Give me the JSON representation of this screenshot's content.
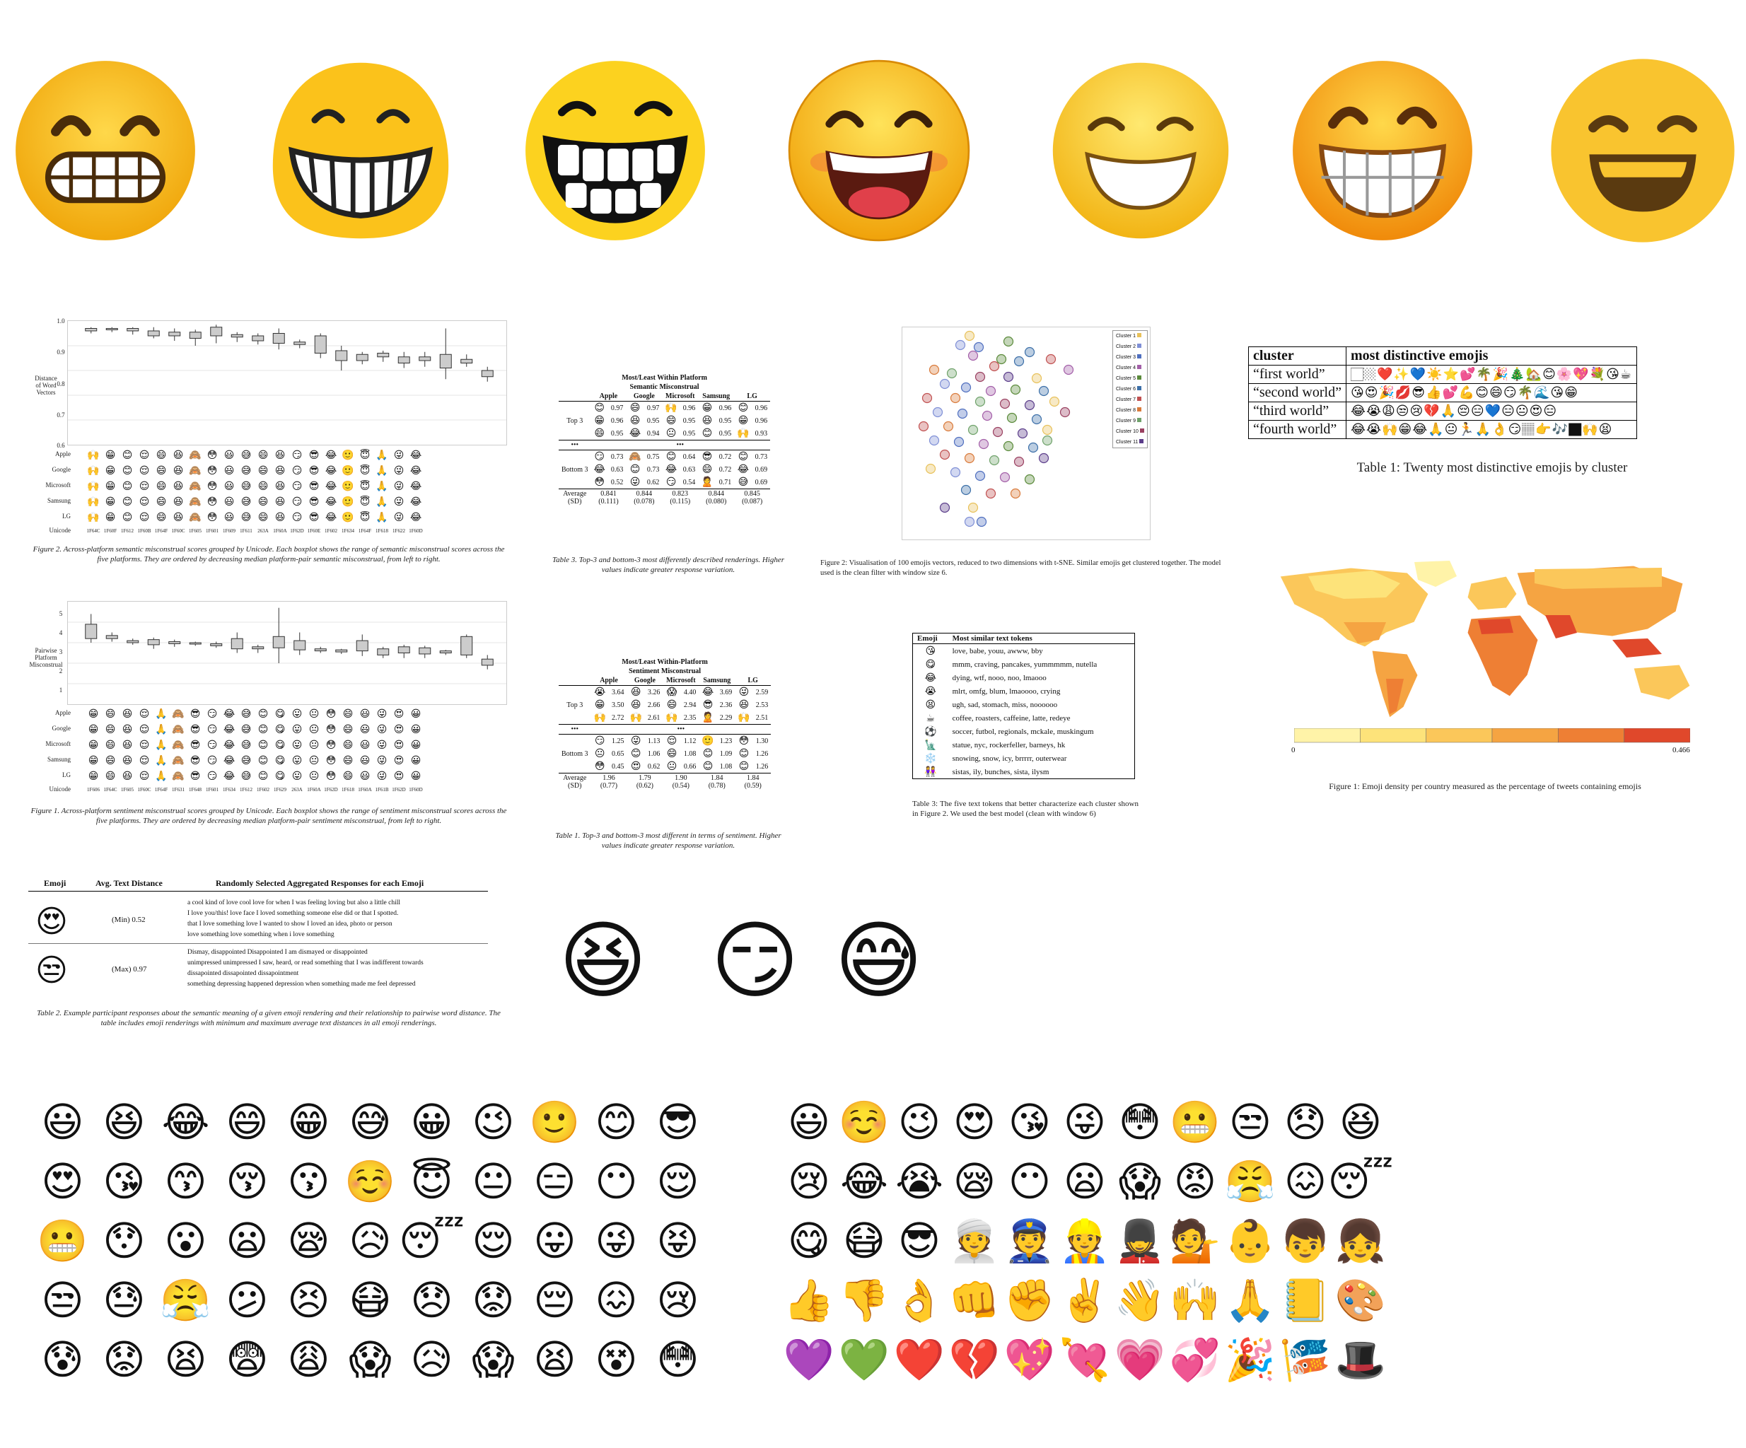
{
  "big_row": {
    "emojis": [
      {
        "name": "apple-grimacing-emoji"
      },
      {
        "name": "google-blob-grin-emoji"
      },
      {
        "name": "microsoft-grin-emoji"
      },
      {
        "name": "samsung-grin-emoji"
      },
      {
        "name": "lg-grin-emoji"
      },
      {
        "name": "htc-grin-emoji"
      },
      {
        "name": "facebook-grin-emoji"
      }
    ],
    "colors": {
      "face": "#f7c22d",
      "shade": "#e9a20f",
      "teeth": "#ffffff",
      "line": "#2b2b2b",
      "mouth": "#5a3a10"
    }
  },
  "fig2": {
    "ylabel": "Distance\nof Word\nVectors",
    "yticks": [
      "1.0",
      "0.9",
      "0.8",
      "0.7",
      "0.6"
    ],
    "rows": {
      "apple": {
        "label": "Apple",
        "emojis": [
          "🙌",
          "😁",
          "😊",
          "😌",
          "😄",
          "😆",
          "🙈",
          "😳",
          "😃",
          "😅",
          "😄",
          "😆",
          "😏",
          "😎",
          "😂",
          "🙂",
          "😇",
          "🙏",
          "😜",
          "😂"
        ]
      },
      "google": {
        "label": "Google",
        "emojis": [
          "🙌",
          "😁",
          "😊",
          "😌",
          "😄",
          "😆",
          "🙈",
          "😳",
          "😃",
          "😅",
          "😄",
          "😆",
          "😏",
          "😎",
          "😂",
          "🙂",
          "😇",
          "🙏",
          "😜",
          "😂"
        ]
      },
      "microsoft": {
        "label": "Microsoft",
        "emojis": [
          "🙌",
          "😁",
          "😊",
          "😌",
          "😄",
          "😆",
          "🙈",
          "😳",
          "😃",
          "😅",
          "😄",
          "😆",
          "😏",
          "😎",
          "😂",
          "🙂",
          "😇",
          "🙏",
          "😜",
          "😂"
        ]
      },
      "samsung": {
        "label": "Samsung",
        "emojis": [
          "🙌",
          "😁",
          "😊",
          "😌",
          "😄",
          "😆",
          "🙈",
          "😳",
          "😃",
          "😅",
          "😄",
          "😆",
          "😏",
          "😎",
          "😂",
          "🙂",
          "😇",
          "🙏",
          "😜",
          "😂"
        ]
      },
      "lg": {
        "label": "LG",
        "emojis": [
          "🙌",
          "😁",
          "😊",
          "😌",
          "😄",
          "😆",
          "🙈",
          "😳",
          "😃",
          "😅",
          "😄",
          "😆",
          "😏",
          "😎",
          "😂",
          "🙂",
          "😇",
          "🙏",
          "😜",
          "😂"
        ]
      }
    },
    "unicode_label": "Unicode",
    "codes": [
      "1F64C",
      "1F60F",
      "1F612",
      "1F60B",
      "1F64F",
      "1F60C",
      "1F605",
      "1F601",
      "1F609",
      "1F611",
      "263A",
      "1F60A",
      "1F62D",
      "1F60E",
      "1F602",
      "1F634",
      "1F64F",
      "1F618",
      "1F622",
      "1F60D"
    ],
    "caption": "Figure 2. Across-platform semantic misconstrual scores grouped by Unicode. Each boxplot shows the range of semantic misconstrual scores across the five platforms. They are ordered by decreasing median platform-pair semantic misconstrual, from left to right."
  },
  "fig1": {
    "ylabel": "Pairwise\nPlatform\nMisconstrual",
    "yticks": [
      "5",
      "4",
      "3",
      "2",
      "1"
    ],
    "rows": {
      "apple": {
        "label": "Apple",
        "emojis": [
          "😁",
          "😄",
          "😆",
          "😌",
          "🙏",
          "🙈",
          "😎",
          "😏",
          "😂",
          "😅",
          "😊",
          "😋",
          "😛",
          "😐",
          "😳",
          "😄",
          "😃",
          "😜",
          "😍",
          "😀"
        ]
      },
      "google": {
        "label": "Google",
        "emojis": [
          "😁",
          "😄",
          "😆",
          "😌",
          "🙏",
          "🙈",
          "😎",
          "😏",
          "😂",
          "😅",
          "😊",
          "😋",
          "😛",
          "😐",
          "😳",
          "😄",
          "😃",
          "😜",
          "😍",
          "😀"
        ]
      },
      "microsoft": {
        "label": "Microsoft",
        "emojis": [
          "😁",
          "😄",
          "😆",
          "😌",
          "🙏",
          "🙈",
          "😎",
          "😏",
          "😂",
          "😅",
          "😊",
          "😋",
          "😛",
          "😐",
          "😳",
          "😄",
          "😃",
          "😜",
          "😍",
          "😀"
        ]
      },
      "samsung": {
        "label": "Samsung",
        "emojis": [
          "😁",
          "😄",
          "😆",
          "😌",
          "🙏",
          "🙈",
          "😎",
          "😏",
          "😂",
          "😅",
          "😊",
          "😋",
          "😛",
          "😐",
          "😳",
          "😄",
          "😃",
          "😜",
          "😍",
          "😀"
        ]
      },
      "lg": {
        "label": "LG",
        "emojis": [
          "😁",
          "😄",
          "😆",
          "😌",
          "🙏",
          "🙈",
          "😎",
          "😏",
          "😂",
          "😅",
          "😊",
          "😋",
          "😛",
          "😐",
          "😳",
          "😄",
          "😃",
          "😜",
          "😍",
          "😀"
        ]
      }
    },
    "unicode_label": "Unicode",
    "codes": [
      "1F606",
      "1F64C",
      "1F605",
      "1F60C",
      "1F64F",
      "1F631",
      "1F648",
      "1F601",
      "1F634",
      "1F612",
      "1F602",
      "1F629",
      "263A",
      "1F60A",
      "1F62D",
      "1F618",
      "1F60A",
      "1F61B",
      "1F62D",
      "1F60D"
    ],
    "caption": "Figure 1. Across-platform sentiment misconstrual scores grouped by Unicode. Each boxplot shows the range of sentiment misconstrual scores across the five platforms. They are ordered by decreasing median platform-pair sentiment misconstrual, from left to right."
  },
  "table3": {
    "title1": "Most/Least Within Platform",
    "title2": "Semantic Misconstrual",
    "columns": [
      "Apple",
      "Google",
      "Microsoft",
      "Samsung",
      "LG"
    ],
    "top_label": "Top 3",
    "bottom_label": "Bottom 3",
    "dots": "•••",
    "top": [
      [
        [
          "😊",
          "0.97"
        ],
        [
          "😄",
          "0.97"
        ],
        [
          "🙌",
          "0.96"
        ],
        [
          "😁",
          "0.96"
        ],
        [
          "😊",
          "0.96"
        ]
      ],
      [
        [
          "😁",
          "0.96"
        ],
        [
          "😆",
          "0.95"
        ],
        [
          "😄",
          "0.95"
        ],
        [
          "😆",
          "0.95"
        ],
        [
          "😁",
          "0.96"
        ]
      ],
      [
        [
          "😄",
          "0.95"
        ],
        [
          "😂",
          "0.94"
        ],
        [
          "😐",
          "0.95"
        ],
        [
          "😊",
          "0.95"
        ],
        [
          "🙌",
          "0.93"
        ]
      ]
    ],
    "bottom": [
      [
        [
          "😏",
          "0.73"
        ],
        [
          "🙈",
          "0.75"
        ],
        [
          "😊",
          "0.64"
        ],
        [
          "😎",
          "0.72"
        ],
        [
          "😊",
          "0.73"
        ]
      ],
      [
        [
          "😂",
          "0.63"
        ],
        [
          "😊",
          "0.73"
        ],
        [
          "😂",
          "0.63"
        ],
        [
          "😄",
          "0.72"
        ],
        [
          "😂",
          "0.69"
        ]
      ],
      [
        [
          "😳",
          "0.52"
        ],
        [
          "😜",
          "0.62"
        ],
        [
          "😏",
          "0.54"
        ],
        [
          "🙎",
          "0.71"
        ],
        [
          "😅",
          "0.69"
        ]
      ]
    ],
    "avg_label1": "Average",
    "avg_label2": "(SD)",
    "avg": [
      [
        "0.841",
        "(0.111)"
      ],
      [
        "0.844",
        "(0.078)"
      ],
      [
        "0.823",
        "(0.115)"
      ],
      [
        "0.844",
        "(0.080)"
      ],
      [
        "0.845",
        "(0.087)"
      ]
    ],
    "caption": "Table 3. Top-3 and bottom-3 most differently described renderings. Higher values indicate greater response variation."
  },
  "table1": {
    "title1": "Most/Least Within-Platform",
    "title2": "Sentiment Misconstrual",
    "columns": [
      "Apple",
      "Google",
      "Microsoft",
      "Samsung",
      "LG"
    ],
    "top_label": "Top 3",
    "bottom_label": "Bottom 3",
    "dots": "•••",
    "top": [
      [
        [
          "😭",
          "3.64"
        ],
        [
          "😆",
          "3.26"
        ],
        [
          "😱",
          "4.40"
        ],
        [
          "😂",
          "3.69"
        ],
        [
          "😜",
          "2.59"
        ]
      ],
      [
        [
          "😁",
          "3.50"
        ],
        [
          "😆",
          "2.66"
        ],
        [
          "😄",
          "2.94"
        ],
        [
          "😎",
          "2.36"
        ],
        [
          "😆",
          "2.53"
        ]
      ],
      [
        [
          "🙌",
          "2.72"
        ],
        [
          "🙌",
          "2.61"
        ],
        [
          "🙌",
          "2.35"
        ],
        [
          "🙎",
          "2.29"
        ],
        [
          "🙌",
          "2.51"
        ]
      ]
    ],
    "bottom": [
      [
        [
          "😏",
          "1.25"
        ],
        [
          "😜",
          "1.13"
        ],
        [
          "😌",
          "1.12"
        ],
        [
          "🙂",
          "1.23"
        ],
        [
          "😳",
          "1.30"
        ]
      ],
      [
        [
          "😐",
          "0.65"
        ],
        [
          "😊",
          "1.06"
        ],
        [
          "😄",
          "1.08"
        ],
        [
          "😊",
          "1.09"
        ],
        [
          "😊",
          "1.26"
        ]
      ],
      [
        [
          "😳",
          "0.45"
        ],
        [
          "😍",
          "0.62"
        ],
        [
          "😐",
          "0.66"
        ],
        [
          "😊",
          "1.08"
        ],
        [
          "😊",
          "1.26"
        ]
      ]
    ],
    "avg_label1": "Average",
    "avg_label2": "(SD)",
    "avg": [
      [
        "1.96",
        "(0.77)"
      ],
      [
        "1.79",
        "(0.62)"
      ],
      [
        "1.90",
        "(0.54)"
      ],
      [
        "1.84",
        "(0.78)"
      ],
      [
        "1.84",
        "(0.59)"
      ]
    ],
    "caption": "Table 1. Top-3 and bottom-3 most different in terms of sentiment. Higher values indicate greater response variation."
  },
  "table2": {
    "headers": [
      "Emoji",
      "Avg. Text Distance",
      "Randomly Selected Aggregated Responses for each Emoji"
    ],
    "rows": [
      {
        "emoji": "😍",
        "distance": "(Min) 0.52",
        "responses": [
          "a cool kind of love cool love for when I was feeling loving but also a little chill",
          "I love you/this! love face I loved something someone else did or that I spotted.",
          "that I love something love I wanted to show I loved an idea, photo or person",
          "love something love something when i love something"
        ]
      },
      {
        "emoji": "😒",
        "distance": "(Max) 0.97",
        "responses": [
          "Dismay, disappointed Disappointed I am dismayed or disappointed",
          "unimpressed unimpressed I saw, heard, or read something that I was indifferent towards",
          "dissapointed dissapointed dissapointment",
          "something depressing happened depression when something made me feel depressed"
        ]
      }
    ],
    "caption": "Table 2. Example participant responses about the semantic meaning of a given emoji rendering and their relationship to pairwise word distance. The table includes emoji renderings with minimum and maximum average text distances in all emoji renderings."
  },
  "tsne": {
    "legend": [
      "Cluster 1",
      "Cluster 2",
      "Cluster 3",
      "Cluster 4",
      "Cluster 5",
      "Cluster 6",
      "Cluster 7",
      "Cluster 8",
      "Cluster 9",
      "Cluster 10",
      "Cluster 11"
    ],
    "legend_colors": [
      "#e8c15a",
      "#7f8fd6",
      "#4f6fbf",
      "#a35fa8",
      "#5a8a3a",
      "#3c6fa8",
      "#c05050",
      "#d97a3a",
      "#6fa26a",
      "#9a4060",
      "#5b3d8a"
    ],
    "caption": "Figure 2: Visualisation of 100 emojis vectors, reduced to two dimensions with t-SNE. Similar emojis get clustered together. The model used is the clean filter with window size 6."
  },
  "cluster_table": {
    "headers": [
      "cluster",
      "most distinctive emojis"
    ],
    "rows": [
      {
        "label": "“first world”",
        "emojis": "🏻🏼❤️✨💙☀️⭐💕🌴🎉🎄🏡😊🌸💖💐😘☕"
      },
      {
        "label": "“second world”",
        "emojis": "😘😍🎉💋😎👍💕💪😊😄😏🌴🌊😘😁"
      },
      {
        "label": "“third world”",
        "emojis": "😂😭😩😒😢💔🙏😔😑💙😑😐😍😑"
      },
      {
        "label": "“fourth world”",
        "emojis": "😂😭🙌😁😂🙏😐🏃🙏👌😏🏽👉🎶🏿🙌😫"
      }
    ],
    "caption": "Table 1: Twenty most distinctive emojis by cluster"
  },
  "map": {
    "scale_min": "0",
    "scale_max": "0.466",
    "scale_colors": [
      "#fff3a8",
      "#fde37a",
      "#fbc75a",
      "#f5a442",
      "#ee7f34",
      "#e0482b"
    ],
    "caption": "Figure 1: Emoji density per country measured as the percentage of tweets containing emojis"
  },
  "similar_tokens": {
    "headers": [
      "Emoji",
      "Most similar text tokens"
    ],
    "rows": [
      {
        "emoji": "😘",
        "tokens": "love, babe, youu, awww, bby"
      },
      {
        "emoji": "😋",
        "tokens": "mmm, craving, pancakes, yummmmm, nutella"
      },
      {
        "emoji": "😂",
        "tokens": "dying, wtf, nooo, noo, lmaooo"
      },
      {
        "emoji": "😭",
        "tokens": "mlrt, omfg, blum, lmaoooo, crying"
      },
      {
        "emoji": "😫",
        "tokens": "ugh, sad, stomach, miss, noooooo"
      },
      {
        "emoji": "☕",
        "tokens": "coffee, roasters, caffeine, latte, redeye"
      },
      {
        "emoji": "⚽",
        "tokens": "soccer, futbol, regionals, mckale, muskingum"
      },
      {
        "emoji": "🗽",
        "tokens": "statue, nyc, rockerfeller, barneys, hk"
      },
      {
        "emoji": "❄️",
        "tokens": "snowing, snow, icy, brrrrr, outerwear"
      },
      {
        "emoji": "👭",
        "tokens": "sistas, ily, bunches, sista, ilysm"
      }
    ],
    "caption": "Table 3: The five text tokens that better characterize each cluster shown in Figure 2. We used the best model (clean with window 6)"
  },
  "mid_emojis": [
    "😆",
    "😏",
    "😅"
  ],
  "grid_left": [
    "😃",
    "😆",
    "😂",
    "😄",
    "😁",
    "😅",
    "😀",
    "😉",
    "🙂",
    "😊",
    "😎",
    "😍",
    "😘",
    "😙",
    "😚",
    "😗",
    "☺️",
    "😇",
    "😐",
    "😑",
    "😶",
    "😌",
    "😬",
    "😯",
    "😮",
    "😦",
    "😪",
    "😥",
    "😴",
    "😌",
    "😛",
    "😜",
    "😝",
    "😒",
    "😓",
    "😤",
    "😕",
    "😣",
    "😷",
    "😞",
    "😟",
    "😔",
    "😖",
    "😢",
    "😰",
    "😟",
    "😫",
    "😨",
    "😩",
    "😱",
    "😥",
    "😱",
    "😫",
    "😵",
    "😳"
  ],
  "grid_right": [
    "😃",
    "☺️",
    "😉",
    "😍",
    "😘",
    "😜",
    "😳",
    "😬",
    "😒",
    "😞",
    "😆",
    "😢",
    "😂",
    "😭",
    "😪",
    "😶",
    "😦",
    "😱",
    "😡",
    "😤",
    "😖",
    "😴",
    "😋",
    "😷",
    "😎",
    "👳",
    "👮",
    "👷",
    "💂",
    "💁",
    "👶",
    "👦",
    "👧",
    "👍",
    "👎",
    "👌",
    "👊",
    "✊",
    "✌️",
    "👋",
    "🙌",
    "🙏",
    "📒",
    "🎨",
    "💜",
    "💚",
    "❤️",
    "💔",
    "💖",
    "💘",
    "💗",
    "💞",
    "🎉",
    "🎏",
    "🎩"
  ]
}
